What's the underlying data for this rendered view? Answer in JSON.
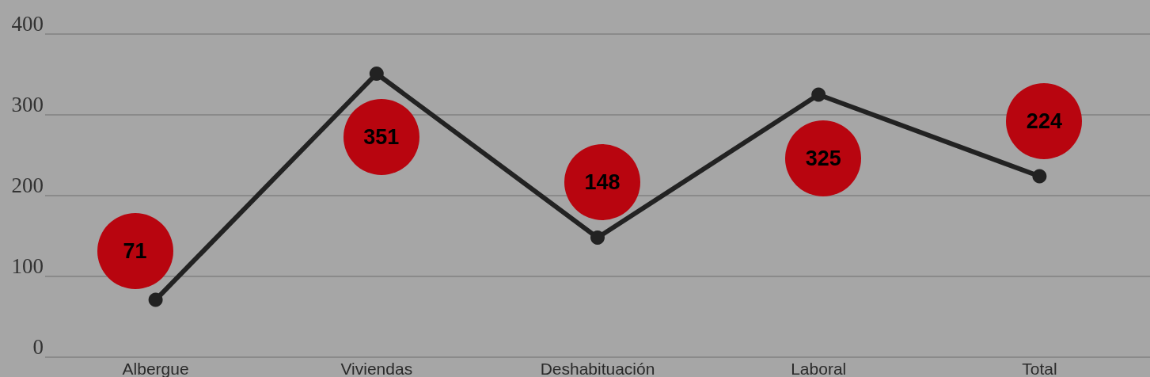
{
  "chart_data": {
    "type": "line",
    "categories": [
      "Albergue",
      "Viviendas",
      "Deshabituación",
      "Laboral",
      "Total"
    ],
    "series": [
      {
        "color": "#222222",
        "values": [
          71,
          351,
          148,
          325,
          224
        ]
      }
    ],
    "ylim": [
      0,
      400
    ],
    "yticks": [
      0,
      100,
      200,
      300,
      400
    ],
    "grid": "y",
    "data_labels": true,
    "marker": "circle",
    "line_style": "solid"
  }
}
